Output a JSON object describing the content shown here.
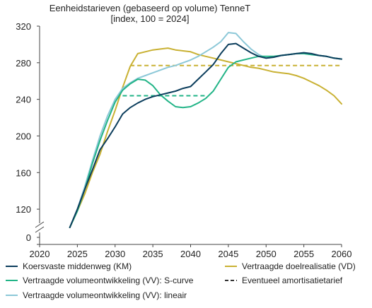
{
  "chart_data": {
    "type": "line",
    "title": [
      "Eenheidstarieven (gebaseerd op volume) TenneT",
      "[index, 100 = 2024]"
    ],
    "xlabel": "",
    "ylabel": "",
    "xlim": [
      2020,
      2060
    ],
    "ylim": [
      0,
      320
    ],
    "axis_break": [
      0,
      100
    ],
    "x_ticks": [
      2020,
      2025,
      2030,
      2035,
      2040,
      2045,
      2050,
      2055,
      2060
    ],
    "y_ticks": [
      0,
      120,
      160,
      200,
      240,
      280,
      320
    ],
    "grid": false,
    "legend_position": "bottom",
    "series": [
      {
        "name": "Koersvaste middenweg (KM)",
        "color": "#0b3d5c",
        "dash": "solid",
        "points": [
          [
            2024,
            100
          ],
          [
            2025,
            120
          ],
          [
            2026,
            142
          ],
          [
            2027,
            163
          ],
          [
            2028,
            185
          ],
          [
            2029,
            197
          ],
          [
            2030,
            210
          ],
          [
            2031,
            224
          ],
          [
            2032,
            231
          ],
          [
            2033,
            236
          ],
          [
            2034,
            240
          ],
          [
            2035,
            243
          ],
          [
            2036,
            245
          ],
          [
            2037,
            247
          ],
          [
            2038,
            249
          ],
          [
            2039,
            252
          ],
          [
            2040,
            254
          ],
          [
            2041,
            262
          ],
          [
            2042,
            270
          ],
          [
            2043,
            278
          ],
          [
            2044,
            290
          ],
          [
            2045,
            300
          ],
          [
            2046,
            301
          ],
          [
            2047,
            296
          ],
          [
            2048,
            291
          ],
          [
            2049,
            287
          ],
          [
            2050,
            285
          ],
          [
            2051,
            286
          ],
          [
            2052,
            288
          ],
          [
            2053,
            289
          ],
          [
            2054,
            290
          ],
          [
            2055,
            291
          ],
          [
            2056,
            290
          ],
          [
            2057,
            288
          ],
          [
            2058,
            287
          ],
          [
            2059,
            285
          ],
          [
            2060,
            284
          ]
        ]
      },
      {
        "name": "Vertraagde doelrealisatie (VD)",
        "color": "#c9b133",
        "dash": "solid",
        "points": [
          [
            2024,
            100
          ],
          [
            2025,
            118
          ],
          [
            2026,
            137
          ],
          [
            2027,
            160
          ],
          [
            2028,
            180
          ],
          [
            2029,
            205
          ],
          [
            2030,
            228
          ],
          [
            2031,
            253
          ],
          [
            2032,
            276
          ],
          [
            2033,
            290
          ],
          [
            2034,
            292
          ],
          [
            2035,
            294
          ],
          [
            2036,
            295
          ],
          [
            2037,
            296
          ],
          [
            2038,
            294
          ],
          [
            2039,
            293
          ],
          [
            2040,
            292
          ],
          [
            2041,
            289
          ],
          [
            2042,
            287
          ],
          [
            2043,
            285
          ],
          [
            2044,
            283
          ],
          [
            2045,
            281
          ],
          [
            2046,
            279
          ],
          [
            2047,
            277
          ],
          [
            2048,
            275
          ],
          [
            2049,
            274
          ],
          [
            2050,
            272
          ],
          [
            2051,
            270
          ],
          [
            2052,
            269
          ],
          [
            2053,
            268
          ],
          [
            2054,
            266
          ],
          [
            2055,
            263
          ],
          [
            2056,
            259
          ],
          [
            2057,
            255
          ],
          [
            2058,
            250
          ],
          [
            2059,
            244
          ],
          [
            2060,
            235
          ]
        ]
      },
      {
        "name": "Vertraagde volumeontwikkeling (VV): S-curve",
        "color": "#22b487",
        "dash": "solid",
        "points": [
          [
            2024,
            100
          ],
          [
            2025,
            118
          ],
          [
            2026,
            142
          ],
          [
            2027,
            170
          ],
          [
            2028,
            195
          ],
          [
            2029,
            217
          ],
          [
            2030,
            237
          ],
          [
            2031,
            250
          ],
          [
            2032,
            257
          ],
          [
            2033,
            262
          ],
          [
            2034,
            261
          ],
          [
            2035,
            255
          ],
          [
            2036,
            245
          ],
          [
            2037,
            238
          ],
          [
            2038,
            232
          ],
          [
            2039,
            231
          ],
          [
            2040,
            232
          ],
          [
            2041,
            236
          ],
          [
            2042,
            241
          ],
          [
            2043,
            249
          ],
          [
            2044,
            262
          ],
          [
            2045,
            275
          ],
          [
            2046,
            281
          ],
          [
            2047,
            283
          ],
          [
            2048,
            285
          ],
          [
            2049,
            287
          ],
          [
            2050,
            287
          ],
          [
            2051,
            287
          ],
          [
            2052,
            288
          ],
          [
            2053,
            289
          ],
          [
            2054,
            290
          ],
          [
            2055,
            290
          ],
          [
            2056,
            289
          ],
          [
            2057,
            288
          ],
          [
            2058,
            287
          ],
          [
            2059,
            285
          ],
          [
            2060,
            284
          ]
        ]
      },
      {
        "name": "Vertraagde volumeontwikkeling (VV): lineair",
        "color": "#8cc8d8",
        "dash": "solid",
        "points": [
          [
            2024,
            100
          ],
          [
            2025,
            120
          ],
          [
            2026,
            145
          ],
          [
            2027,
            173
          ],
          [
            2028,
            200
          ],
          [
            2029,
            222
          ],
          [
            2030,
            240
          ],
          [
            2031,
            252
          ],
          [
            2032,
            258
          ],
          [
            2033,
            263
          ],
          [
            2034,
            266
          ],
          [
            2035,
            269
          ],
          [
            2036,
            272
          ],
          [
            2037,
            275
          ],
          [
            2038,
            277
          ],
          [
            2039,
            280
          ],
          [
            2040,
            283
          ],
          [
            2041,
            287
          ],
          [
            2042,
            292
          ],
          [
            2043,
            297
          ],
          [
            2044,
            303
          ],
          [
            2045,
            313
          ],
          [
            2046,
            312
          ],
          [
            2047,
            303
          ],
          [
            2048,
            295
          ],
          [
            2049,
            289
          ],
          [
            2050,
            285
          ],
          [
            2051,
            286
          ],
          [
            2052,
            288
          ],
          [
            2053,
            289
          ],
          [
            2054,
            290
          ],
          [
            2055,
            290
          ],
          [
            2056,
            289
          ],
          [
            2057,
            288
          ],
          [
            2058,
            287
          ],
          [
            2059,
            285
          ],
          [
            2060,
            284
          ]
        ]
      },
      {
        "name": "Eventueel amortisatietarief",
        "color": "#c9b133",
        "dash": "dashed",
        "points": [
          [
            2032,
            277
          ],
          [
            2060,
            277
          ]
        ]
      },
      {
        "name": "",
        "color": "#22b487",
        "dash": "dashed",
        "points": [
          [
            2031,
            244
          ],
          [
            2042,
            244
          ]
        ]
      }
    ],
    "legend": [
      {
        "label": "Koersvaste middenweg (KM)",
        "color": "#0b3d5c",
        "dash": "solid"
      },
      {
        "label": "Vertraagde doelrealisatie (VD)",
        "color": "#c9b133",
        "dash": "solid"
      },
      {
        "label": "Vertraagde volumeontwikkeling (VV): S-curve",
        "color": "#22b487",
        "dash": "solid"
      },
      {
        "label": "Eventueel amortisatietarief",
        "color": "#333333",
        "dash": "dashed"
      },
      {
        "label": "Vertraagde volumeontwikkeling (VV): lineair",
        "color": "#8cc8d8",
        "dash": "solid"
      }
    ]
  }
}
